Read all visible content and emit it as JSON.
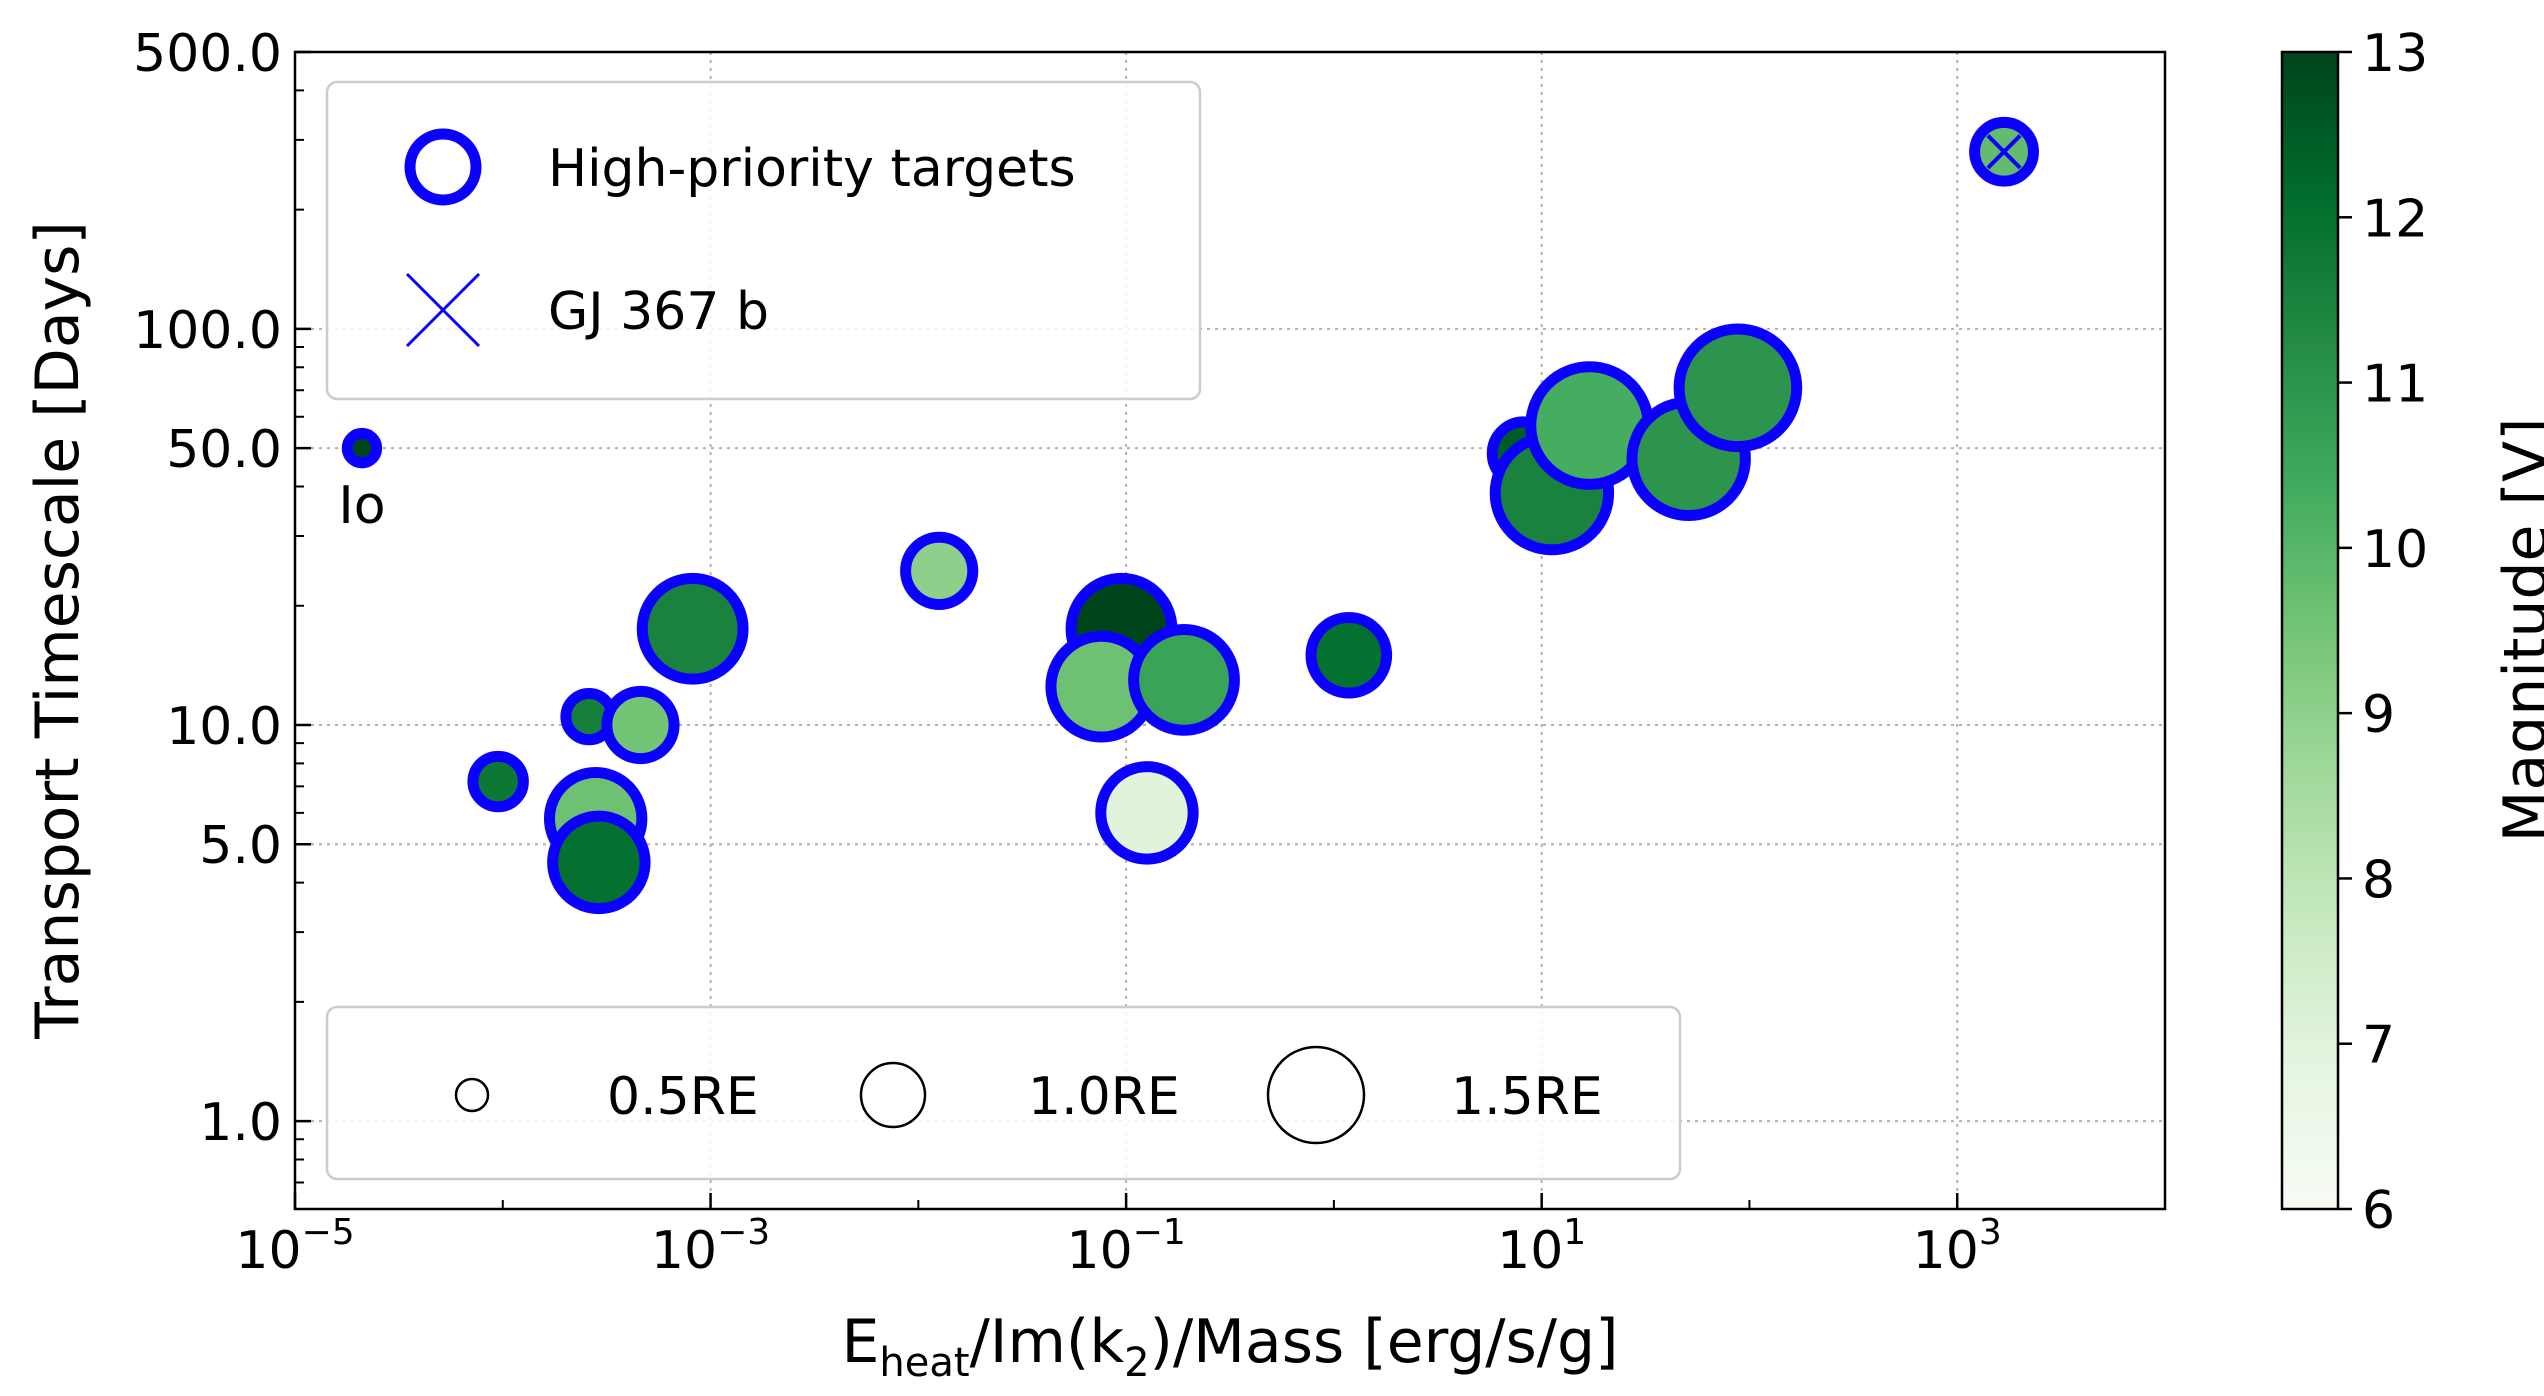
{
  "chart_data": {
    "type": "scatter",
    "xlabel_parts": [
      "E",
      "heat",
      "/Im(k",
      "2",
      ")/Mass [erg/s/g]"
    ],
    "ylabel": "Transport Timescale [Days]",
    "x_scale": "log",
    "y_scale": "log",
    "xlim": [
      1e-05,
      10000.0
    ],
    "ylim": [
      0.6,
      500
    ],
    "x_ticks": [
      {
        "value": 1e-05,
        "base": "10",
        "exp": "−5"
      },
      {
        "value": 0.001,
        "base": "10",
        "exp": "−3"
      },
      {
        "value": 0.1,
        "base": "10",
        "exp": "−1"
      },
      {
        "value": 10,
        "base": "10",
        "exp": "1"
      },
      {
        "value": 1000,
        "base": "10",
        "exp": "3"
      }
    ],
    "y_ticks": [
      {
        "value": 1,
        "label": "1.0"
      },
      {
        "value": 5,
        "label": "5.0"
      },
      {
        "value": 10,
        "label": "10.0"
      },
      {
        "value": 50,
        "label": "50.0"
      },
      {
        "value": 100,
        "label": "100.0"
      },
      {
        "value": 500,
        "label": "500.0"
      }
    ],
    "grid": true,
    "colorbar": {
      "label": "Magnitude [V]",
      "range": [
        6,
        13
      ],
      "ticks": [
        6,
        7,
        8,
        9,
        10,
        11,
        12,
        13
      ],
      "colormap": "Greens",
      "stops": [
        "#f7fcf5",
        "#e5f5e0",
        "#c7e9c0",
        "#a1d99b",
        "#74c476",
        "#41ab5d",
        "#238b45",
        "#006d2c",
        "#00441b"
      ]
    },
    "points": [
      {
        "x": 2.1e-05,
        "y": 50,
        "radius_re": 0.35,
        "mag": 13.0,
        "high_priority": true,
        "label": "Io"
      },
      {
        "x": 9.5e-05,
        "y": 7.2,
        "radius_re": 0.6,
        "mag": 11.8,
        "high_priority": true
      },
      {
        "x": 0.00026,
        "y": 10.5,
        "radius_re": 0.55,
        "mag": 11.6,
        "high_priority": true
      },
      {
        "x": 0.00046,
        "y": 10.0,
        "radius_re": 0.8,
        "mag": 9.5,
        "high_priority": true
      },
      {
        "x": 0.00028,
        "y": 5.8,
        "radius_re": 1.1,
        "mag": 9.6,
        "high_priority": true
      },
      {
        "x": 0.00029,
        "y": 4.5,
        "radius_re": 1.1,
        "mag": 12.0,
        "high_priority": true
      },
      {
        "x": 0.00082,
        "y": 17.5,
        "radius_re": 1.2,
        "mag": 11.5,
        "high_priority": true
      },
      {
        "x": 0.0126,
        "y": 24.5,
        "radius_re": 0.8,
        "mag": 9.0,
        "high_priority": true
      },
      {
        "x": 0.095,
        "y": 17.5,
        "radius_re": 1.2,
        "mag": 13.0,
        "high_priority": true
      },
      {
        "x": 0.076,
        "y": 12.5,
        "radius_re": 1.2,
        "mag": 9.6,
        "high_priority": true
      },
      {
        "x": 0.19,
        "y": 13.0,
        "radius_re": 1.2,
        "mag": 10.6,
        "high_priority": true
      },
      {
        "x": 0.126,
        "y": 6.0,
        "radius_re": 1.1,
        "mag": 7.0,
        "high_priority": true
      },
      {
        "x": 1.18,
        "y": 15.0,
        "radius_re": 0.9,
        "mag": 12.0,
        "high_priority": true
      },
      {
        "x": 8.2,
        "y": 48.5,
        "radius_re": 0.75,
        "mag": 12.5,
        "high_priority": true
      },
      {
        "x": 11.2,
        "y": 38.5,
        "radius_re": 1.35,
        "mag": 11.5,
        "high_priority": true
      },
      {
        "x": 17.0,
        "y": 57,
        "radius_re": 1.4,
        "mag": 10.3,
        "high_priority": true
      },
      {
        "x": 51,
        "y": 47,
        "radius_re": 1.35,
        "mag": 11.0,
        "high_priority": true
      },
      {
        "x": 88,
        "y": 71,
        "radius_re": 1.4,
        "mag": 11.0,
        "high_priority": true
      },
      {
        "x": 1680,
        "y": 280,
        "radius_re": 0.7,
        "mag": 9.8,
        "high_priority": true,
        "gj367b": true
      }
    ],
    "legend_markers": {
      "placement": "upper-left",
      "entries": [
        {
          "marker": "open-circle",
          "label": "High-priority targets"
        },
        {
          "marker": "x",
          "label": "GJ 367 b"
        }
      ]
    },
    "legend_sizes": {
      "placement": "lower-left",
      "entries": [
        {
          "radius_re": 0.5,
          "label": "0.5RE"
        },
        {
          "radius_re": 1.0,
          "label": "1.0RE"
        },
        {
          "radius_re": 1.5,
          "label": "1.5RE"
        }
      ]
    },
    "marker_edge_color": "#0b00ff"
  }
}
